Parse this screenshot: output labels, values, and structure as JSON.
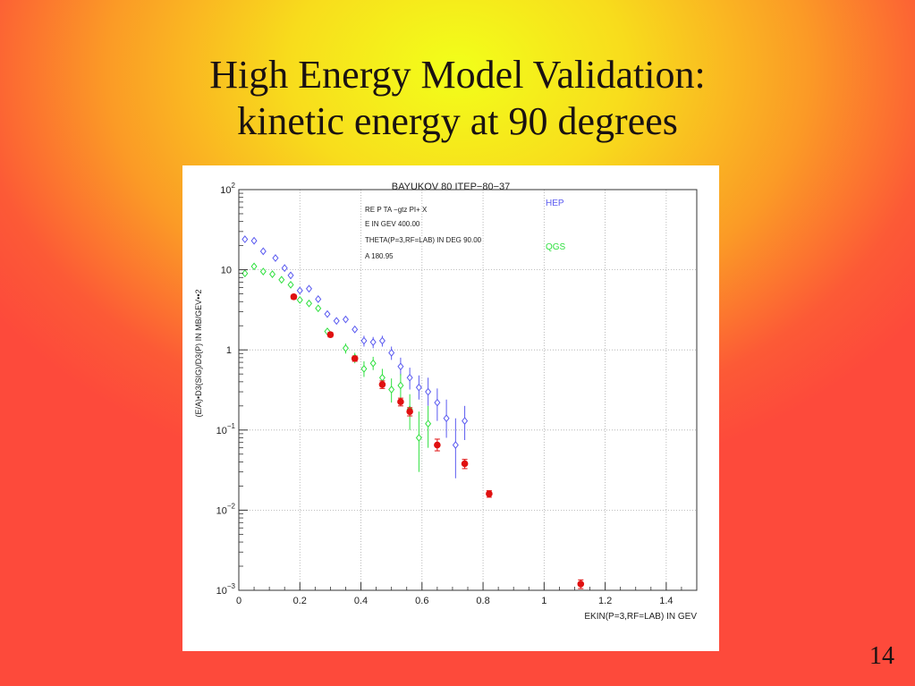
{
  "slide": {
    "title_line1": "High Energy Model Validation:",
    "title_line2": "kinetic energy at 90 degrees",
    "page_number": "14"
  },
  "chart_data": {
    "type": "scatter",
    "title": "BAYUKOV 80   ITEP−80−37",
    "xlabel": "EKIN(P=3,RF=LAB) IN GEV",
    "ylabel": "(E/A)•D3(SIG)/D3(P) IN MB/GEV••2",
    "xlim": [
      0,
      1.5
    ],
    "ylim": [
      0.001,
      100
    ],
    "yscale": "log",
    "grid": true,
    "x_ticks": [
      {
        "value": 0,
        "label": "0"
      },
      {
        "value": 0.2,
        "label": "0.2"
      },
      {
        "value": 0.4,
        "label": "0.4"
      },
      {
        "value": 0.6,
        "label": "0.6"
      },
      {
        "value": 0.8,
        "label": "0.8"
      },
      {
        "value": 1.0,
        "label": "1"
      },
      {
        "value": 1.2,
        "label": "1.2"
      },
      {
        "value": 1.4,
        "label": "1.4"
      }
    ],
    "y_ticks": [
      {
        "value": 100,
        "base": "10",
        "exp": "2"
      },
      {
        "value": 10,
        "base": "10",
        "exp": ""
      },
      {
        "value": 1,
        "base": "1",
        "exp": ""
      },
      {
        "value": 0.1,
        "base": "10",
        "exp": "−1"
      },
      {
        "value": 0.01,
        "base": "10",
        "exp": "−2"
      },
      {
        "value": 0.001,
        "base": "10",
        "exp": "−3"
      }
    ],
    "annotations": [
      "RE   P TA −gtz PI+ X",
      "E IN GEV   400.00",
      "THETA(P=3,RF=LAB) IN DEG   90.00",
      "A   180.95"
    ],
    "legend_position": "top-right",
    "series": [
      {
        "name": "HEP",
        "marker": "diamond-open",
        "color": "#5a5af0",
        "points": [
          {
            "x": 0.02,
            "y": 24,
            "lo": 24,
            "hi": 24
          },
          {
            "x": 0.05,
            "y": 23,
            "lo": 23,
            "hi": 23
          },
          {
            "x": 0.08,
            "y": 17,
            "lo": 17,
            "hi": 17
          },
          {
            "x": 0.12,
            "y": 14,
            "lo": 14,
            "hi": 14
          },
          {
            "x": 0.15,
            "y": 10.5,
            "lo": 10.5,
            "hi": 10.5
          },
          {
            "x": 0.17,
            "y": 8.5,
            "lo": 8.5,
            "hi": 8.5
          },
          {
            "x": 0.2,
            "y": 5.5,
            "lo": 5.5,
            "hi": 5.5
          },
          {
            "x": 0.23,
            "y": 5.8,
            "lo": 5.8,
            "hi": 5.8
          },
          {
            "x": 0.26,
            "y": 4.3,
            "lo": 4.3,
            "hi": 4.3
          },
          {
            "x": 0.29,
            "y": 2.8,
            "lo": 2.6,
            "hi": 3.0
          },
          {
            "x": 0.32,
            "y": 2.3,
            "lo": 2.1,
            "hi": 2.5
          },
          {
            "x": 0.35,
            "y": 2.4,
            "lo": 2.2,
            "hi": 2.6
          },
          {
            "x": 0.38,
            "y": 1.8,
            "lo": 1.65,
            "hi": 1.95
          },
          {
            "x": 0.41,
            "y": 1.3,
            "lo": 1.1,
            "hi": 1.5
          },
          {
            "x": 0.44,
            "y": 1.25,
            "lo": 1.05,
            "hi": 1.45
          },
          {
            "x": 0.47,
            "y": 1.3,
            "lo": 1.1,
            "hi": 1.5
          },
          {
            "x": 0.5,
            "y": 0.92,
            "lo": 0.75,
            "hi": 1.1
          },
          {
            "x": 0.53,
            "y": 0.62,
            "lo": 0.48,
            "hi": 0.8
          },
          {
            "x": 0.56,
            "y": 0.45,
            "lo": 0.32,
            "hi": 0.6
          },
          {
            "x": 0.59,
            "y": 0.34,
            "lo": 0.24,
            "hi": 0.48
          },
          {
            "x": 0.62,
            "y": 0.3,
            "lo": 0.2,
            "hi": 0.45
          },
          {
            "x": 0.65,
            "y": 0.22,
            "lo": 0.13,
            "hi": 0.33
          },
          {
            "x": 0.68,
            "y": 0.14,
            "lo": 0.08,
            "hi": 0.24
          },
          {
            "x": 0.71,
            "y": 0.065,
            "lo": 0.025,
            "hi": 0.14
          },
          {
            "x": 0.74,
            "y": 0.13,
            "lo": 0.075,
            "hi": 0.2
          }
        ]
      },
      {
        "name": "QGS",
        "marker": "diamond-open",
        "color": "#30e040",
        "points": [
          {
            "x": 0.02,
            "y": 9,
            "lo": 9,
            "hi": 9
          },
          {
            "x": 0.05,
            "y": 11,
            "lo": 11,
            "hi": 11
          },
          {
            "x": 0.08,
            "y": 9.5,
            "lo": 9.5,
            "hi": 9.5
          },
          {
            "x": 0.11,
            "y": 8.8,
            "lo": 8.8,
            "hi": 8.8
          },
          {
            "x": 0.14,
            "y": 7.5,
            "lo": 7.5,
            "hi": 7.5
          },
          {
            "x": 0.17,
            "y": 6.5,
            "lo": 6.5,
            "hi": 6.5
          },
          {
            "x": 0.2,
            "y": 4.2,
            "lo": 4.2,
            "hi": 4.2
          },
          {
            "x": 0.23,
            "y": 3.8,
            "lo": 3.8,
            "hi": 3.8
          },
          {
            "x": 0.26,
            "y": 3.3,
            "lo": 3.3,
            "hi": 3.3
          },
          {
            "x": 0.29,
            "y": 1.7,
            "lo": 1.55,
            "hi": 1.85
          },
          {
            "x": 0.35,
            "y": 1.05,
            "lo": 0.9,
            "hi": 1.2
          },
          {
            "x": 0.38,
            "y": 0.8,
            "lo": 0.68,
            "hi": 0.92
          },
          {
            "x": 0.41,
            "y": 0.58,
            "lo": 0.46,
            "hi": 0.72
          },
          {
            "x": 0.44,
            "y": 0.68,
            "lo": 0.56,
            "hi": 0.82
          },
          {
            "x": 0.47,
            "y": 0.45,
            "lo": 0.34,
            "hi": 0.58
          },
          {
            "x": 0.5,
            "y": 0.32,
            "lo": 0.22,
            "hi": 0.44
          },
          {
            "x": 0.53,
            "y": 0.36,
            "lo": 0.24,
            "hi": 0.5
          },
          {
            "x": 0.56,
            "y": 0.18,
            "lo": 0.1,
            "hi": 0.28
          },
          {
            "x": 0.59,
            "y": 0.08,
            "lo": 0.03,
            "hi": 0.17
          },
          {
            "x": 0.62,
            "y": 0.12,
            "lo": 0.06,
            "hi": 0.2
          }
        ]
      },
      {
        "name": "",
        "marker": "circle-filled",
        "color": "#e01010",
        "points": [
          {
            "x": 0.18,
            "y": 4.6,
            "lo": 4.3,
            "hi": 4.9
          },
          {
            "x": 0.3,
            "y": 1.55,
            "lo": 1.45,
            "hi": 1.65
          },
          {
            "x": 0.38,
            "y": 0.78,
            "lo": 0.72,
            "hi": 0.84
          },
          {
            "x": 0.47,
            "y": 0.37,
            "lo": 0.33,
            "hi": 0.41
          },
          {
            "x": 0.53,
            "y": 0.225,
            "lo": 0.2,
            "hi": 0.25
          },
          {
            "x": 0.56,
            "y": 0.17,
            "lo": 0.15,
            "hi": 0.19
          },
          {
            "x": 0.65,
            "y": 0.065,
            "lo": 0.055,
            "hi": 0.077
          },
          {
            "x": 0.74,
            "y": 0.038,
            "lo": 0.033,
            "hi": 0.043
          },
          {
            "x": 0.82,
            "y": 0.016,
            "lo": 0.0145,
            "hi": 0.0175
          },
          {
            "x": 1.12,
            "y": 0.0012,
            "lo": 0.00105,
            "hi": 0.00135
          }
        ]
      }
    ]
  }
}
